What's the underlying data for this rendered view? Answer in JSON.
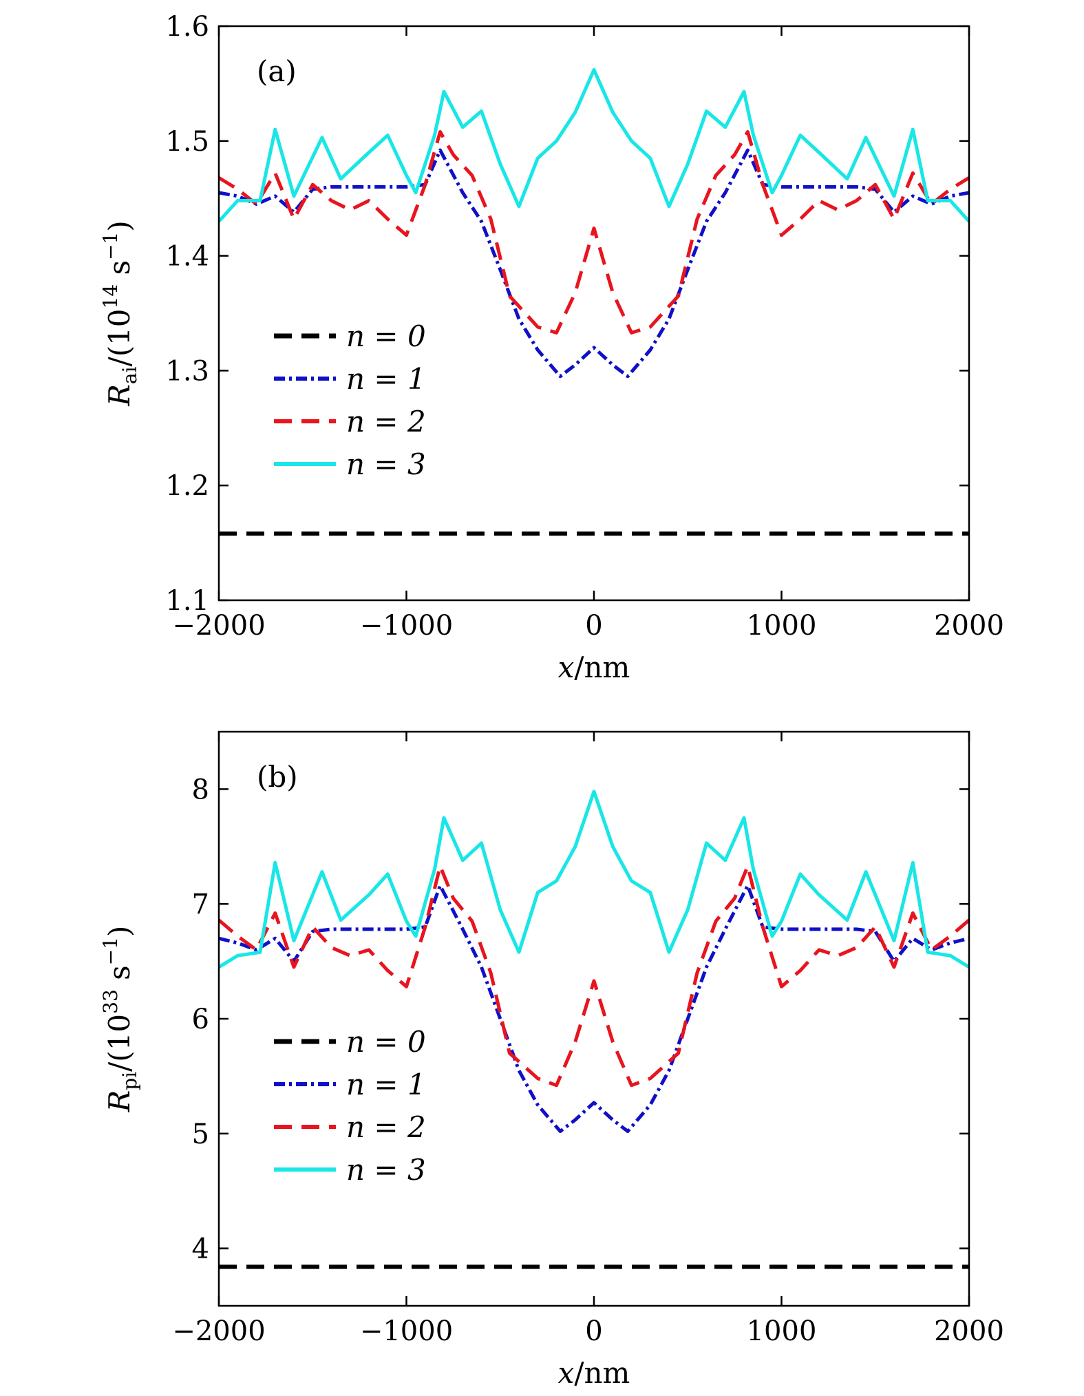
{
  "chart_data": [
    {
      "type": "line",
      "panel_label": "(a)",
      "xlabel": {
        "var": "x",
        "unit": "/nm"
      },
      "ylabel": {
        "var": "R",
        "sub": "ai",
        "pre": "/(10",
        "sup": "14",
        "mid": " s",
        "sup2": "−1",
        "post": ")"
      },
      "xlim": [
        -2000,
        2000
      ],
      "ylim": [
        1.1,
        1.6
      ],
      "xticks": [
        -2000,
        -1000,
        0,
        1000,
        2000
      ],
      "xtick_labels": [
        "−2000",
        "−1000",
        "0",
        "1000",
        "2000"
      ],
      "yticks": [
        1.1,
        1.2,
        1.3,
        1.4,
        1.5,
        1.6
      ],
      "ytick_labels": [
        "1.1",
        "1.2",
        "1.3",
        "1.4",
        "1.5",
        "1.6"
      ],
      "legend_placement": "middle-left",
      "series": [
        {
          "legend": "n = 0",
          "color": "#000000",
          "style": "dashed",
          "x": [
            -2000,
            2000
          ],
          "y": [
            1.158,
            1.158
          ]
        },
        {
          "legend": "n = 1",
          "color": "#1010c8",
          "style": "dashdot",
          "x": [
            -2000,
            -1900,
            -1800,
            -1700,
            -1600,
            -1500,
            -1400,
            -1300,
            -1200,
            -1100,
            -1000,
            -900,
            -820,
            -700,
            -600,
            -500,
            -400,
            -300,
            -180,
            -100,
            0,
            100,
            180,
            300,
            400,
            500,
            600,
            700,
            820,
            900,
            1000,
            1100,
            1200,
            1300,
            1400,
            1500,
            1600,
            1700,
            1800,
            1900,
            2000
          ],
          "y": [
            1.455,
            1.452,
            1.445,
            1.452,
            1.438,
            1.458,
            1.46,
            1.46,
            1.46,
            1.46,
            1.46,
            1.462,
            1.492,
            1.455,
            1.43,
            1.388,
            1.345,
            1.318,
            1.295,
            1.305,
            1.32,
            1.305,
            1.295,
            1.318,
            1.345,
            1.388,
            1.43,
            1.455,
            1.492,
            1.462,
            1.46,
            1.46,
            1.46,
            1.46,
            1.46,
            1.458,
            1.438,
            1.452,
            1.445,
            1.452,
            1.455
          ]
        },
        {
          "legend": "n = 2",
          "color": "#e8141e",
          "style": "dashed",
          "x": [
            -2000,
            -1900,
            -1800,
            -1700,
            -1600,
            -1500,
            -1400,
            -1300,
            -1200,
            -1100,
            -1000,
            -900,
            -820,
            -750,
            -650,
            -550,
            -450,
            -300,
            -200,
            -100,
            0,
            100,
            200,
            300,
            450,
            550,
            650,
            750,
            820,
            900,
            1000,
            1100,
            1200,
            1300,
            1400,
            1500,
            1600,
            1700,
            1800,
            1900,
            2000
          ],
          "y": [
            1.468,
            1.458,
            1.445,
            1.472,
            1.432,
            1.462,
            1.448,
            1.44,
            1.448,
            1.432,
            1.418,
            1.462,
            1.508,
            1.488,
            1.47,
            1.432,
            1.365,
            1.338,
            1.333,
            1.368,
            1.424,
            1.368,
            1.333,
            1.338,
            1.365,
            1.432,
            1.47,
            1.488,
            1.508,
            1.462,
            1.418,
            1.432,
            1.448,
            1.44,
            1.448,
            1.462,
            1.432,
            1.472,
            1.445,
            1.458,
            1.468
          ]
        },
        {
          "legend": "n = 3",
          "color": "#19e6e6",
          "style": "solid",
          "x": [
            -2000,
            -1900,
            -1780,
            -1700,
            -1600,
            -1450,
            -1350,
            -1200,
            -1100,
            -1000,
            -950,
            -850,
            -800,
            -700,
            -600,
            -500,
            -400,
            -300,
            -200,
            -100,
            0,
            100,
            200,
            300,
            400,
            500,
            600,
            700,
            800,
            850,
            950,
            1000,
            1100,
            1200,
            1350,
            1450,
            1600,
            1700,
            1780,
            1900,
            2000
          ],
          "y": [
            1.43,
            1.448,
            1.448,
            1.51,
            1.452,
            1.503,
            1.467,
            1.49,
            1.505,
            1.47,
            1.455,
            1.505,
            1.543,
            1.512,
            1.526,
            1.48,
            1.443,
            1.485,
            1.5,
            1.525,
            1.562,
            1.525,
            1.5,
            1.485,
            1.443,
            1.48,
            1.526,
            1.512,
            1.543,
            1.505,
            1.455,
            1.47,
            1.505,
            1.49,
            1.467,
            1.503,
            1.452,
            1.51,
            1.448,
            1.448,
            1.43
          ]
        }
      ]
    },
    {
      "type": "line",
      "panel_label": "(b)",
      "xlabel": {
        "var": "x",
        "unit": "/nm"
      },
      "ylabel": {
        "var": "R",
        "sub": "pi",
        "pre": "/(10",
        "sup": "33",
        "mid": " s",
        "sup2": "−1",
        "post": ")"
      },
      "xlim": [
        -2000,
        2000
      ],
      "ylim": [
        3.5,
        8.5
      ],
      "xticks": [
        -2000,
        -1000,
        0,
        1000,
        2000
      ],
      "xtick_labels": [
        "−2000",
        "−1000",
        "0",
        "1000",
        "2000"
      ],
      "yticks": [
        4,
        5,
        6,
        7,
        8
      ],
      "ytick_labels": [
        "4",
        "5",
        "6",
        "7",
        "8"
      ],
      "legend_placement": "middle-left",
      "series": [
        {
          "legend": "n = 0",
          "color": "#000000",
          "style": "dashed",
          "x": [
            -2000,
            2000
          ],
          "y": [
            3.84,
            3.84
          ]
        },
        {
          "legend": "n = 1",
          "color": "#1010c8",
          "style": "dashdot",
          "x": [
            -2000,
            -1900,
            -1800,
            -1700,
            -1600,
            -1500,
            -1400,
            -1300,
            -1200,
            -1100,
            -1000,
            -900,
            -820,
            -700,
            -600,
            -500,
            -400,
            -300,
            -180,
            -100,
            0,
            100,
            180,
            300,
            400,
            500,
            600,
            700,
            820,
            900,
            1000,
            1100,
            1200,
            1300,
            1400,
            1500,
            1600,
            1700,
            1800,
            1900,
            2000
          ],
          "y": [
            6.7,
            6.66,
            6.6,
            6.7,
            6.5,
            6.76,
            6.78,
            6.78,
            6.78,
            6.78,
            6.78,
            6.8,
            7.16,
            6.78,
            6.45,
            6.0,
            5.55,
            5.25,
            5.02,
            5.12,
            5.27,
            5.12,
            5.02,
            5.25,
            5.55,
            6.0,
            6.45,
            6.78,
            7.16,
            6.8,
            6.78,
            6.78,
            6.78,
            6.78,
            6.78,
            6.76,
            6.5,
            6.7,
            6.6,
            6.66,
            6.7
          ]
        },
        {
          "legend": "n = 2",
          "color": "#e8141e",
          "style": "dashed",
          "x": [
            -2000,
            -1900,
            -1800,
            -1700,
            -1600,
            -1500,
            -1400,
            -1300,
            -1200,
            -1100,
            -1000,
            -900,
            -820,
            -750,
            -650,
            -550,
            -450,
            -300,
            -200,
            -100,
            0,
            100,
            200,
            300,
            450,
            550,
            650,
            750,
            820,
            900,
            1000,
            1100,
            1200,
            1300,
            1400,
            1500,
            1600,
            1700,
            1800,
            1900,
            2000
          ],
          "y": [
            6.86,
            6.72,
            6.6,
            6.92,
            6.45,
            6.8,
            6.62,
            6.55,
            6.6,
            6.42,
            6.28,
            6.8,
            7.33,
            7.05,
            6.85,
            6.4,
            5.7,
            5.48,
            5.42,
            5.8,
            6.33,
            5.8,
            5.42,
            5.48,
            5.7,
            6.4,
            6.85,
            7.05,
            7.33,
            6.8,
            6.28,
            6.42,
            6.6,
            6.55,
            6.62,
            6.8,
            6.45,
            6.92,
            6.6,
            6.72,
            6.86
          ]
        },
        {
          "legend": "n = 3",
          "color": "#19e6e6",
          "style": "solid",
          "x": [
            -2000,
            -1900,
            -1780,
            -1700,
            -1600,
            -1450,
            -1350,
            -1200,
            -1100,
            -1000,
            -950,
            -850,
            -800,
            -700,
            -600,
            -500,
            -400,
            -300,
            -200,
            -100,
            0,
            100,
            200,
            300,
            400,
            500,
            600,
            700,
            800,
            850,
            950,
            1000,
            1100,
            1200,
            1350,
            1450,
            1600,
            1700,
            1780,
            1900,
            2000
          ],
          "y": [
            6.45,
            6.55,
            6.58,
            7.36,
            6.68,
            7.28,
            6.86,
            7.08,
            7.26,
            6.85,
            6.72,
            7.3,
            7.75,
            7.38,
            7.53,
            6.95,
            6.58,
            7.1,
            7.2,
            7.5,
            7.98,
            7.5,
            7.2,
            7.1,
            6.58,
            6.95,
            7.53,
            7.38,
            7.75,
            7.3,
            6.72,
            6.85,
            7.26,
            7.08,
            6.86,
            7.28,
            6.68,
            7.36,
            6.58,
            6.55,
            6.45
          ]
        }
      ]
    }
  ]
}
